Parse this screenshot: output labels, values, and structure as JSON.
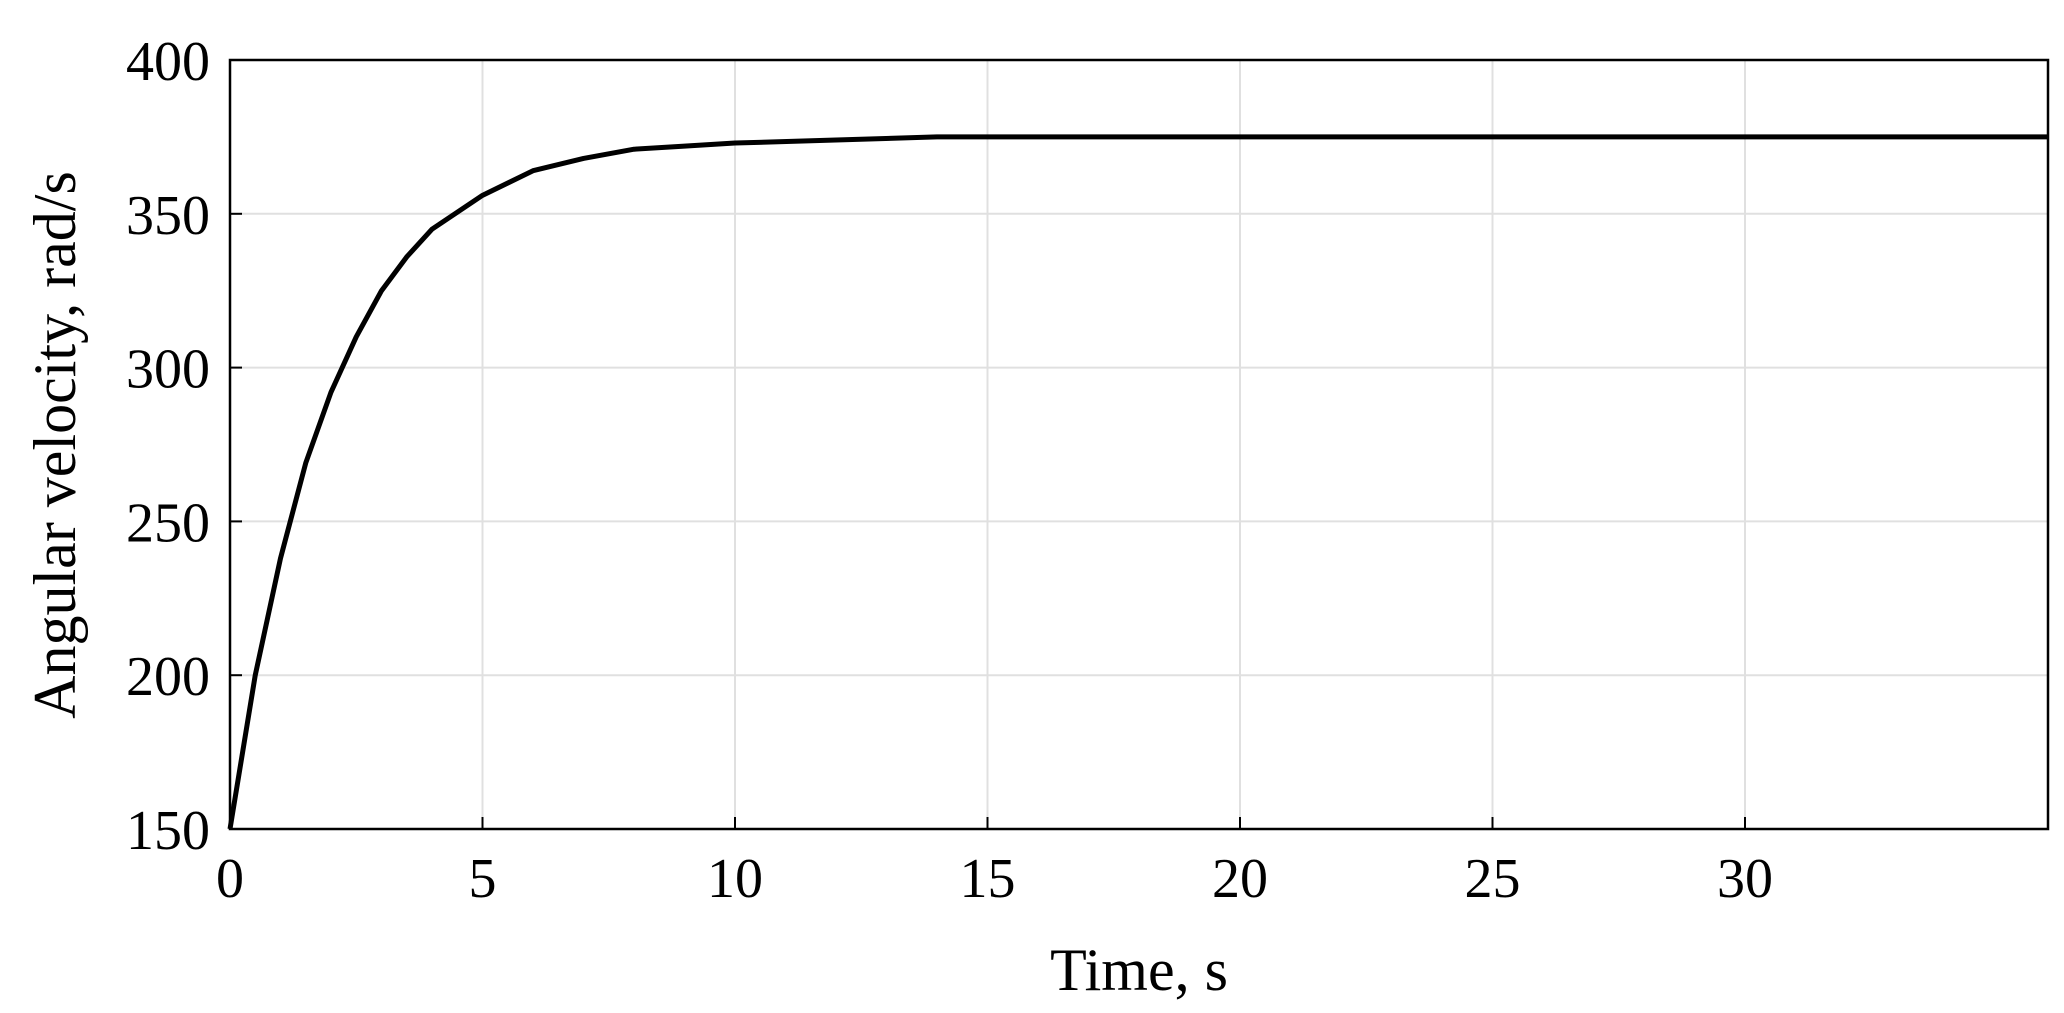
{
  "chart_data": {
    "type": "line",
    "x_label": "Time, s",
    "y_label": "Angular velocity, rad/s",
    "x": [
      0,
      0.5,
      1,
      1.5,
      2,
      2.5,
      3,
      3.5,
      4,
      5,
      6,
      7,
      8,
      9,
      10,
      12,
      14,
      16,
      18,
      20,
      25,
      30,
      36
    ],
    "series": [
      {
        "color": "#000000",
        "values": [
          150,
          200,
          238,
          269,
          292,
          310,
          325,
          336,
          345,
          356,
          364,
          368,
          371,
          372,
          373,
          374,
          375,
          375,
          375,
          375,
          375,
          375,
          375
        ]
      }
    ],
    "xlim": [
      0,
      36
    ],
    "xticks": [
      0,
      5,
      10,
      15,
      20,
      25,
      30
    ],
    "ylim": [
      150,
      400
    ],
    "yticks": [
      150,
      200,
      250,
      300,
      350,
      400
    ],
    "grid": true
  }
}
